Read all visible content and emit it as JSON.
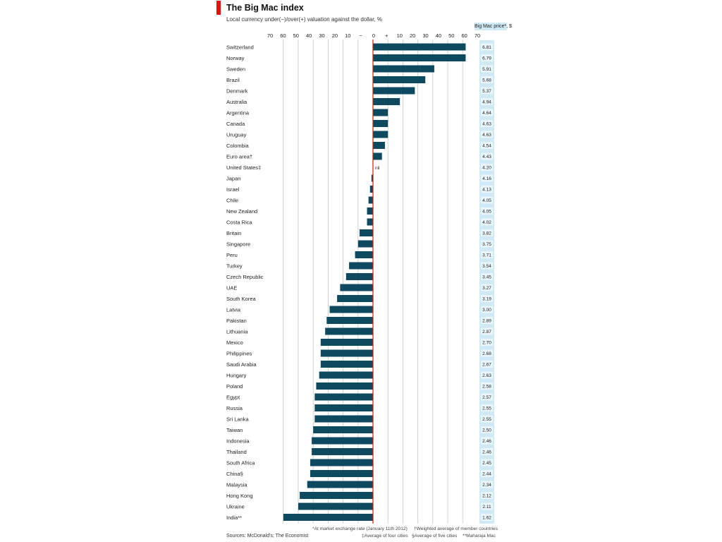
{
  "header": {
    "title": "The Big Mac index",
    "subtitle": "Local currency under(−)/over(+) valuation against the dollar, %"
  },
  "price_column": {
    "header": "Big Mac price*, $"
  },
  "footnotes": {
    "exchange_rate": "*At market exchange rate (January 11th 2012)",
    "weighted_average": "†Weighted average of member countries",
    "four_cities": "‡Average of four cities",
    "five_cities": "§Average of five cities",
    "maharaja": "**Maharaja Mac"
  },
  "sources": "Sources: McDonald's; The Economist",
  "colors": {
    "bar": "#0d4a60",
    "zero_line": "#e3120b",
    "grid": "#c9c9c9",
    "price_bg": "#cfeaf5",
    "brand_red": "#e3120b"
  },
  "chart_data": {
    "type": "bar",
    "orientation": "horizontal",
    "title": "The Big Mac index",
    "subtitle": "Local currency under(−)/over(+) valuation against the dollar, %",
    "xlim": [
      -60,
      70
    ],
    "axis_ticks": [
      {
        "value": -60,
        "label": "70"
      },
      {
        "value": -50,
        "label": "60"
      },
      {
        "value": -40,
        "label": "50"
      },
      {
        "value": -30,
        "label": "40"
      },
      {
        "value": -20,
        "label": "30"
      },
      {
        "value": -10,
        "label": "20"
      },
      {
        "value": 0,
        "label": "10"
      },
      {
        "value": 10,
        "label": "−"
      },
      {
        "value": 20,
        "label": "0"
      },
      {
        "value": 30,
        "label": "+"
      },
      {
        "value": 40,
        "label": "10"
      },
      {
        "value": 50,
        "label": "20"
      },
      {
        "value": 60,
        "label": "30"
      },
      {
        "value": 70,
        "label": "40"
      }
    ],
    "axis_labels": [
      "70",
      "60",
      "50",
      "40",
      "30",
      "20",
      "10",
      "−",
      "0",
      "+",
      "10",
      "20",
      "30",
      "40",
      "50",
      "60",
      "70"
    ],
    "grid": true,
    "zero_label": "nil",
    "categories": [
      "Switzerland",
      "Norway",
      "Sweden",
      "Brazil",
      "Denmark",
      "Australia",
      "Argentina",
      "Canada",
      "Uruguay",
      "Colombia",
      "Euro area†",
      "United States‡",
      "Japan",
      "Israel",
      "Chile",
      "New Zealand",
      "Costa Rica",
      "Britain",
      "Singapore",
      "Peru",
      "Turkey",
      "Czech Republic",
      "UAE",
      "South Korea",
      "Latvia",
      "Pakistan",
      "Lithuania",
      "Mexico",
      "Philippines",
      "Saudi Arabia",
      "Hungary",
      "Poland",
      "Egypt",
      "Russia",
      "Sri Lanka",
      "Taiwan",
      "Indonesia",
      "Thailand",
      "South Africa",
      "China§",
      "Malaysia",
      "Hong Kong",
      "Ukraine",
      "India**"
    ],
    "values": [
      62,
      62,
      41,
      35,
      28,
      18,
      10,
      10,
      10,
      8,
      6,
      0,
      -1,
      -2,
      -3,
      -4,
      -4,
      -9,
      -10,
      -12,
      -16,
      -18,
      -22,
      -24,
      -29,
      -31,
      -32,
      -35,
      -35,
      -35,
      -36,
      -38,
      -39,
      -39,
      -39,
      -40,
      -41,
      -41,
      -42,
      -42,
      -44,
      -49,
      -50,
      -60
    ],
    "prices": [
      "6.81",
      "6.79",
      "5.91",
      "5.68",
      "5.37",
      "4.94",
      "4.64",
      "4.63",
      "4.63",
      "4.54",
      "4.43",
      "4.20",
      "4.16",
      "4.13",
      "4.05",
      "4.05",
      "4.02",
      "3.82",
      "3.75",
      "3.71",
      "3.54",
      "3.45",
      "3.27",
      "3.19",
      "3.00",
      "2.89",
      "2.87",
      "2.70",
      "2.68",
      "2.67",
      "2.63",
      "2.58",
      "2.57",
      "2.55",
      "2.55",
      "2.50",
      "2.46",
      "2.46",
      "2.45",
      "2.44",
      "2.34",
      "2.12",
      "2.11",
      "1.62"
    ]
  }
}
